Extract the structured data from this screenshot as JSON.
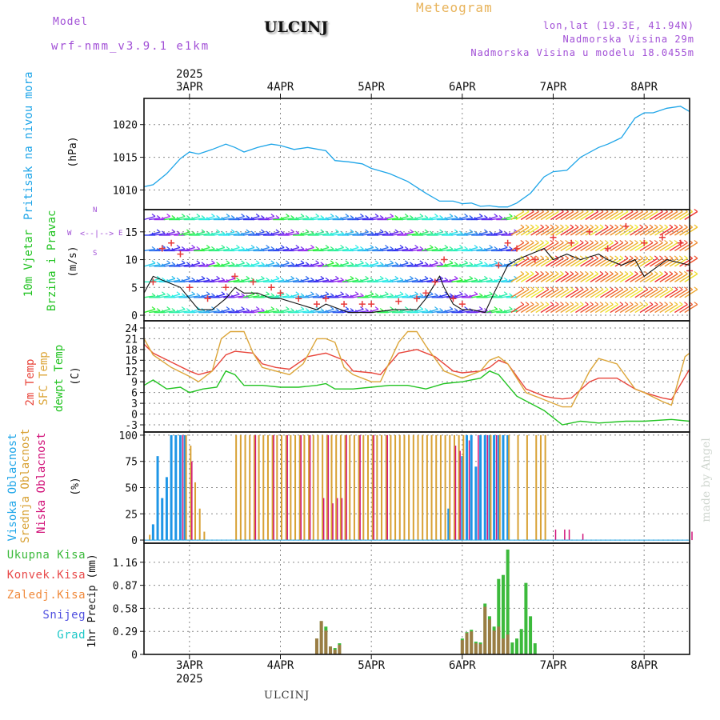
{
  "header": {
    "model_label": "Model",
    "model_name": "wrf-nmm_v3.9.1 e1km",
    "station": "ULCINJ",
    "meteogram": "Meteogram",
    "lonlat": "lon,lat (19.3E, 41.94N)",
    "altitude": "Nadmorska Visina 29m",
    "model_altitude": "Nadmorska Visina u modelu 18.0455m",
    "footer_station": "ULCINJ",
    "watermark": "made by Angel"
  },
  "time_axis": {
    "year": "2025",
    "day_labels": [
      "3APR",
      "4APR",
      "5APR",
      "6APR",
      "7APR",
      "8APR"
    ],
    "start_day": 2.5,
    "end_day": 8.5
  },
  "panels": {
    "pressure": {
      "label": "Pritisak na nivou mora",
      "unit": "(hPa)",
      "ticks": [
        "1010",
        "1015",
        "1020"
      ]
    },
    "wind": {
      "label1": "10m Vjetar",
      "label2": "Brzina i Pravac",
      "unit": "(m/s)",
      "ticks": [
        "0",
        "5",
        "10",
        "15"
      ],
      "compass": {
        "n": "N",
        "s": "S",
        "w": "W",
        "e": "E"
      }
    },
    "temp": {
      "label1": "2m Temp",
      "label2": "SFC Temp",
      "label3": "dewpt Temp",
      "unit": "(C)",
      "ticks": [
        "-3",
        "0",
        "3",
        "6",
        "9",
        "12",
        "15",
        "18",
        "21",
        "24"
      ]
    },
    "cloud": {
      "label1": "Visoka Oblacnost",
      "label2": "Srednja Oblacnost",
      "label3": "Niska Oblacnost",
      "unit": "(%)",
      "ticks": [
        "0",
        "25",
        "50",
        "75",
        "100"
      ]
    },
    "precip": {
      "legend": [
        "Ukupna Kisa",
        "Konvek.Kisa",
        "Zaledj.Kisa",
        "Snijeg",
        "Grad"
      ],
      "unit": "1hr Precip (mm)",
      "ticks": [
        "0",
        "0.29",
        "0.58",
        "0.87",
        "1.16"
      ]
    }
  },
  "colors": {
    "pressure": "#1ea5e8",
    "t2m": "#e8463c",
    "tsfc": "#dca63a",
    "dewpt": "#22c322",
    "cloud_high": "#1e96e6",
    "cloud_mid": "#d8a134",
    "cloud_low": "#d2147a",
    "precip_total": "#3cba3c",
    "precip_conv": "#e84a4a",
    "precip_frz": "#f08a3c",
    "precip_snow": "#5050e0",
    "precip_hail": "#1ec8c8",
    "wind_line": "#111111",
    "gust": "#e83a3a"
  },
  "chart_data": [
    {
      "type": "line",
      "title": "Pritisak na nivou mora",
      "ylabel": "(hPa)",
      "ylim": [
        1007,
        1024
      ],
      "x_unit": "day of April 2025",
      "series": [
        {
          "name": "Pritisak na nivou mora",
          "x": [
            2.5,
            2.6,
            2.75,
            2.9,
            3.0,
            3.1,
            3.25,
            3.4,
            3.5,
            3.6,
            3.75,
            3.9,
            4.0,
            4.15,
            4.3,
            4.5,
            4.6,
            4.75,
            4.9,
            5.0,
            5.2,
            5.4,
            5.6,
            5.75,
            5.9,
            6.0,
            6.1,
            6.2,
            6.3,
            6.4,
            6.5,
            6.6,
            6.75,
            6.9,
            7.0,
            7.15,
            7.3,
            7.5,
            7.6,
            7.75,
            7.9,
            8.0,
            8.1,
            8.25,
            8.4,
            8.5
          ],
          "values": [
            1010.5,
            1010.8,
            1012.5,
            1014.8,
            1015.8,
            1015.5,
            1016.2,
            1017.0,
            1016.5,
            1015.8,
            1016.5,
            1017.0,
            1016.8,
            1016.2,
            1016.5,
            1016.0,
            1014.5,
            1014.3,
            1014.0,
            1013.3,
            1012.5,
            1011.3,
            1009.5,
            1008.3,
            1008.3,
            1007.9,
            1008.0,
            1007.5,
            1007.6,
            1007.4,
            1007.4,
            1008.0,
            1009.5,
            1012.0,
            1012.8,
            1013.0,
            1015.0,
            1016.5,
            1017.0,
            1018.0,
            1021.0,
            1021.8,
            1021.8,
            1022.5,
            1022.8,
            1022.0
          ]
        }
      ]
    },
    {
      "type": "line",
      "title": "10m Vjetar Brzina i Pravac",
      "ylabel": "(m/s)",
      "ylim": [
        -1,
        19
      ],
      "x_unit": "day of April 2025",
      "series": [
        {
          "name": "10m Vjetar Brzina",
          "x": [
            2.5,
            2.6,
            2.75,
            2.9,
            3.0,
            3.1,
            3.25,
            3.4,
            3.5,
            3.6,
            3.75,
            3.9,
            4.0,
            4.2,
            4.4,
            4.5,
            4.75,
            5.0,
            5.25,
            5.5,
            5.6,
            5.75,
            5.8,
            5.9,
            6.0,
            6.1,
            6.25,
            6.35,
            6.5,
            6.6,
            6.75,
            6.9,
            7.0,
            7.15,
            7.3,
            7.5,
            7.6,
            7.75,
            7.9,
            8.0,
            8.25,
            8.5
          ],
          "values": [
            4,
            7,
            6,
            5,
            3,
            1,
            1,
            3,
            5,
            4,
            4,
            3,
            3,
            2,
            1,
            2,
            0.5,
            0.5,
            1,
            1,
            3,
            7,
            5,
            2,
            1,
            1,
            0.5,
            4,
            9,
            10,
            11,
            12,
            10,
            11,
            10,
            11,
            10,
            9,
            10,
            7,
            10,
            9
          ]
        },
        {
          "name": "Udari",
          "x": [
            2.6,
            2.7,
            2.8,
            2.9,
            3.0,
            3.2,
            3.4,
            3.5,
            3.7,
            3.9,
            4.0,
            4.2,
            4.4,
            4.5,
            4.7,
            4.9,
            5.0,
            5.3,
            5.5,
            5.6,
            5.7,
            5.8,
            5.9,
            6.0,
            6.4,
            6.5,
            6.6,
            6.8,
            7.0,
            7.2,
            7.4,
            7.6,
            7.8,
            8.0,
            8.2,
            8.4,
            8.5
          ],
          "values": [
            6,
            12,
            13,
            11,
            5,
            3,
            5,
            7,
            6,
            5,
            4,
            3,
            2,
            3,
            2,
            2,
            2,
            2.5,
            3,
            4,
            6,
            10,
            3,
            2,
            9,
            13,
            12,
            10,
            14,
            13,
            15,
            12,
            16,
            13,
            14,
            13,
            8
          ]
        }
      ]
    },
    {
      "type": "line",
      "title": "2m Temp / SFC Temp / dewpt Temp",
      "ylabel": "(C)",
      "ylim": [
        -5,
        26
      ],
      "x_unit": "day of April 2025",
      "series": [
        {
          "name": "2m Temp",
          "x": [
            2.5,
            2.6,
            2.8,
            3.0,
            3.1,
            3.25,
            3.4,
            3.5,
            3.7,
            3.8,
            3.95,
            4.1,
            4.3,
            4.5,
            4.7,
            4.8,
            5.0,
            5.1,
            5.3,
            5.5,
            5.7,
            5.9,
            6.0,
            6.2,
            6.3,
            6.4,
            6.5,
            6.7,
            6.9,
            7.0,
            7.1,
            7.2,
            7.4,
            7.5,
            7.7,
            7.9,
            8.0,
            8.2,
            8.3,
            8.5
          ],
          "values": [
            19.5,
            17,
            14.5,
            12,
            11,
            12,
            16.5,
            17.5,
            17,
            14,
            13,
            12.5,
            16,
            17,
            15,
            12,
            11.5,
            11,
            17,
            18,
            16,
            12,
            11.5,
            12,
            13,
            15,
            14,
            7,
            5,
            4.5,
            4.2,
            4.5,
            9,
            10,
            10,
            7,
            6,
            4.5,
            4,
            12.5
          ]
        },
        {
          "name": "SFC Temp",
          "x": [
            2.5,
            2.6,
            2.8,
            3.0,
            3.1,
            3.25,
            3.35,
            3.45,
            3.6,
            3.7,
            3.8,
            3.95,
            4.1,
            4.25,
            4.4,
            4.5,
            4.6,
            4.7,
            4.8,
            5.0,
            5.1,
            5.3,
            5.4,
            5.5,
            5.6,
            5.8,
            5.9,
            6.0,
            6.2,
            6.3,
            6.4,
            6.5,
            6.7,
            6.9,
            7.0,
            7.1,
            7.2,
            7.4,
            7.5,
            7.7,
            7.9,
            8.0,
            8.2,
            8.3,
            8.45,
            8.5
          ],
          "values": [
            21,
            16.5,
            13,
            10.5,
            9,
            12,
            21,
            23,
            23,
            17,
            13,
            12,
            11,
            14,
            21,
            21,
            20,
            13,
            11,
            9,
            9,
            20,
            23,
            23,
            19,
            12,
            11,
            10,
            12,
            15,
            16,
            14,
            6,
            4,
            3,
            2,
            2,
            12,
            15.5,
            14,
            7,
            6,
            3.5,
            2.5,
            16,
            17
          ]
        },
        {
          "name": "dewpt Temp",
          "x": [
            2.5,
            2.6,
            2.75,
            2.9,
            3.0,
            3.15,
            3.3,
            3.4,
            3.5,
            3.6,
            3.8,
            4.0,
            4.2,
            4.4,
            4.5,
            4.6,
            4.8,
            5.0,
            5.2,
            5.4,
            5.6,
            5.8,
            6.0,
            6.2,
            6.3,
            6.4,
            6.6,
            6.9,
            7.0,
            7.1,
            7.3,
            7.5,
            7.8,
            8.0,
            8.3,
            8.5
          ],
          "values": [
            8,
            9.5,
            7,
            7.5,
            6,
            7,
            7.5,
            12,
            11,
            8,
            8,
            7.5,
            7.5,
            8,
            8.5,
            7,
            7,
            7.5,
            8,
            8,
            7,
            8.5,
            9,
            10,
            12,
            11,
            5,
            1,
            -1,
            -3,
            -2,
            -2.5,
            -2,
            -2,
            -1.5,
            -2
          ]
        }
      ]
    },
    {
      "type": "bar",
      "title": "Visoka / Srednja / Niska Oblacnost",
      "ylabel": "(%)",
      "ylim": [
        0,
        100
      ],
      "x_unit": "day of April 2025",
      "series": [
        {
          "name": "Visoka Oblacnost",
          "x": [
            2.5,
            2.55,
            2.6,
            2.65,
            2.7,
            2.75,
            2.8,
            2.85,
            2.9,
            2.95,
            5.85,
            6.0,
            6.05,
            6.1,
            6.15,
            6.2,
            6.25,
            6.3,
            6.35,
            6.4,
            6.45,
            6.5
          ],
          "values": [
            0,
            0,
            15,
            80,
            40,
            60,
            100,
            100,
            100,
            100,
            30,
            80,
            100,
            100,
            70,
            100,
            100,
            100,
            100,
            100,
            100,
            100
          ]
        },
        {
          "name": "Srednja Oblacnost",
          "x": [
            2.55,
            2.95,
            3.0,
            3.05,
            3.1,
            3.15,
            3.5,
            3.55,
            3.6,
            3.65,
            3.7,
            3.75,
            3.8,
            3.85,
            3.9,
            3.95,
            4.0,
            4.05,
            4.1,
            4.15,
            4.2,
            4.25,
            4.3,
            4.35,
            4.4,
            4.45,
            4.5,
            4.55,
            4.6,
            4.65,
            4.7,
            4.75,
            4.8,
            4.85,
            4.9,
            4.95,
            5.0,
            5.05,
            5.1,
            5.15,
            5.2,
            5.25,
            5.3,
            5.35,
            5.4,
            5.45,
            5.5,
            5.55,
            5.6,
            5.65,
            5.7,
            5.75,
            5.8,
            5.85,
            5.9,
            5.95,
            6.0,
            6.3,
            6.4,
            6.5,
            6.6,
            6.7,
            6.8,
            6.85,
            6.9
          ],
          "values": [
            5,
            100,
            90,
            55,
            30,
            8,
            100,
            100,
            100,
            100,
            100,
            100,
            100,
            100,
            100,
            100,
            100,
            100,
            100,
            100,
            100,
            100,
            100,
            100,
            100,
            100,
            100,
            100,
            100,
            100,
            100,
            100,
            100,
            100,
            100,
            100,
            100,
            100,
            100,
            100,
            100,
            100,
            100,
            100,
            100,
            100,
            100,
            100,
            100,
            100,
            100,
            100,
            100,
            100,
            100,
            100,
            100,
            100,
            100,
            100,
            100,
            100,
            100,
            100,
            100
          ]
        },
        {
          "name": "Niska Oblacnost",
          "x": [
            2.9,
            3.0,
            3.7,
            3.9,
            4.05,
            4.2,
            4.3,
            4.45,
            4.5,
            4.55,
            4.6,
            4.65,
            4.7,
            4.85,
            5.0,
            5.15,
            5.9,
            5.95,
            6.05,
            6.15,
            6.25,
            6.35,
            7.0,
            7.1,
            7.15,
            7.3,
            8.5
          ],
          "values": [
            100,
            75,
            100,
            100,
            100,
            100,
            100,
            40,
            100,
            35,
            40,
            40,
            100,
            100,
            100,
            100,
            90,
            85,
            95,
            100,
            100,
            100,
            10,
            10,
            10,
            6,
            8
          ]
        }
      ]
    },
    {
      "type": "bar",
      "title": "1hr Precip",
      "ylabel": "1hr Precip (mm)",
      "ylim": [
        0,
        1.4
      ],
      "x_unit": "day of April 2025",
      "series": [
        {
          "name": "Ukupna Kisa",
          "x": [
            4.4,
            4.45,
            4.5,
            4.55,
            4.6,
            4.65,
            4.7,
            6.0,
            6.05,
            6.1,
            6.15,
            6.2,
            6.25,
            6.3,
            6.35,
            6.4,
            6.45,
            6.5,
            6.55,
            6.6,
            6.65,
            6.7,
            6.75,
            6.8
          ],
          "values": [
            0.2,
            0.42,
            0.35,
            0.1,
            0.08,
            0.14,
            0.0,
            0.2,
            0.28,
            0.31,
            0.16,
            0.15,
            0.64,
            0.48,
            0.35,
            0.95,
            1.0,
            1.32,
            0.15,
            0.2,
            0.32,
            0.9,
            0.48,
            0.14
          ]
        },
        {
          "name": "Konvek.Kisa",
          "x": [
            4.4,
            4.45,
            4.5,
            4.55,
            4.6,
            4.65,
            6.0,
            6.05,
            6.1,
            6.15,
            6.2,
            6.25,
            6.3,
            6.35,
            6.4,
            6.45,
            6.5
          ],
          "values": [
            0.2,
            0.42,
            0.3,
            0.1,
            0.06,
            0.12,
            0.18,
            0.27,
            0.29,
            0.14,
            0.13,
            0.6,
            0.44,
            0.3,
            0.35,
            0.2,
            0.25
          ]
        }
      ]
    }
  ]
}
